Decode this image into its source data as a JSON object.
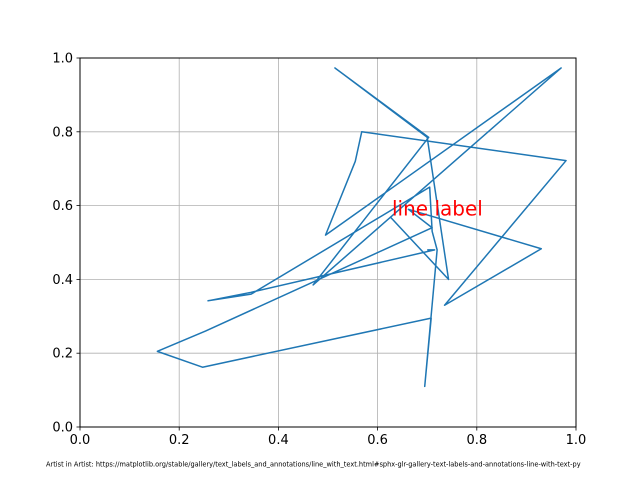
{
  "chart_data": {
    "type": "line",
    "title": "",
    "xlabel": "",
    "ylabel": "",
    "xlim": [
      0,
      1
    ],
    "ylim": [
      0,
      1
    ],
    "grid": true,
    "x_ticks": [
      "0.0",
      "0.2",
      "0.4",
      "0.6",
      "0.8",
      "1.0"
    ],
    "y_ticks": [
      "0.0",
      "0.2",
      "0.4",
      "0.6",
      "0.8",
      "1.0"
    ],
    "series": [
      {
        "color": "#1f77b4",
        "x": [
          0.625,
          0.743,
          0.7,
          0.514,
          0.703,
          0.47,
          0.97,
          0.495,
          0.555,
          0.568,
          0.98,
          0.735,
          0.93,
          0.662,
          0.71,
          0.253,
          0.156,
          0.247,
          0.708,
          0.695,
          0.72,
          0.71,
          0.705,
          0.345,
          0.258,
          0.345,
          0.715,
          0.7
        ],
        "y": [
          0.57,
          0.4,
          0.785,
          0.973,
          0.785,
          0.385,
          0.973,
          0.52,
          0.72,
          0.8,
          0.722,
          0.33,
          0.483,
          0.59,
          0.54,
          0.26,
          0.205,
          0.162,
          0.295,
          0.11,
          0.48,
          0.53,
          0.65,
          0.36,
          0.342,
          0.365,
          0.48,
          0.48
        ]
      }
    ],
    "annotation": {
      "text": "line label",
      "x": 0.625,
      "y": 0.57,
      "color": "#ff0000"
    }
  },
  "caption": "Artist in Artist: https://matplotlib.org/stable/gallery/text_labels_and_annotations/line_with_text.html#sphx-glr-gallery-text-labels-and-annotations-line-with-text-py"
}
